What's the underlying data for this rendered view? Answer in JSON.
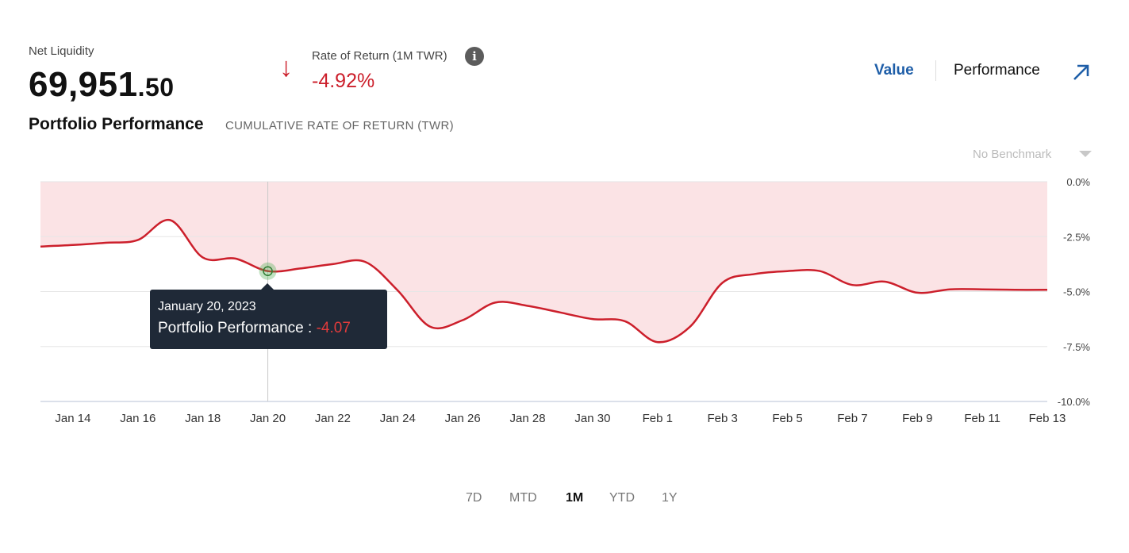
{
  "header": {
    "net_liquidity_label": "Net Liquidity",
    "net_liquidity_int": "69,951",
    "net_liquidity_dec": ".50",
    "ror_label": "Rate of Return (1M TWR)",
    "ror_value": "-4.92%",
    "ror_direction_icon": "arrow-down-icon",
    "info_icon": "info-icon"
  },
  "toggles": {
    "value_label": "Value",
    "performance_label": "Performance",
    "expand_icon": "arrow-up-right-icon"
  },
  "section": {
    "title": "Portfolio Performance",
    "subtitle": "CUMULATIVE RATE OF RETURN (TWR)"
  },
  "benchmark": {
    "selected": "No Benchmark"
  },
  "tooltip": {
    "date": "January 20, 2023",
    "label": "Portfolio Performance : ",
    "value": "-4.07"
  },
  "ranges": {
    "r7d": "7D",
    "mtd": "MTD",
    "r1m": "1M",
    "ytd": "YTD",
    "r1y": "1Y",
    "active": "1M"
  },
  "colors": {
    "line": "#cc1f2b",
    "fill": "#fbe3e5",
    "accent": "#1e5ea8",
    "negative": "#cc1f2b"
  },
  "chart_data": {
    "type": "area",
    "xlabel": "",
    "ylabel": "",
    "ylim": [
      -10.0,
      0.0
    ],
    "yticks": [
      "0.0%",
      "-2.5%",
      "-5.0%",
      "-7.5%",
      "-10.0%"
    ],
    "ytick_values": [
      0.0,
      -2.5,
      -5.0,
      -7.5,
      -10.0
    ],
    "xticks": [
      "Jan 14",
      "Jan 16",
      "Jan 18",
      "Jan 20",
      "Jan 22",
      "Jan 24",
      "Jan 26",
      "Jan 28",
      "Jan 30",
      "Feb 1",
      "Feb 3",
      "Feb 5",
      "Feb 7",
      "Feb 9",
      "Feb 11",
      "Feb 13"
    ],
    "grid": true,
    "series": [
      {
        "x": [
          "Jan 13",
          "Jan 14",
          "Jan 15",
          "Jan 16",
          "Jan 17",
          "Jan 18",
          "Jan 19",
          "Jan 20",
          "Jan 21",
          "Jan 22",
          "Jan 23",
          "Jan 24",
          "Jan 25",
          "Jan 26",
          "Jan 27",
          "Jan 28",
          "Jan 29",
          "Jan 30",
          "Jan 31",
          "Feb 1",
          "Feb 2",
          "Feb 3",
          "Feb 4",
          "Feb 5",
          "Feb 6",
          "Feb 7",
          "Feb 8",
          "Feb 9",
          "Feb 10",
          "Feb 11",
          "Feb 12",
          "Feb 13"
        ],
        "values": [
          -2.95,
          -2.88,
          -2.78,
          -2.65,
          -1.75,
          -3.45,
          -3.5,
          -4.07,
          -3.95,
          -3.75,
          -3.65,
          -4.95,
          -6.6,
          -6.3,
          -5.5,
          -5.65,
          -5.95,
          -6.25,
          -6.35,
          -7.3,
          -6.6,
          -4.6,
          -4.2,
          -4.07,
          -4.07,
          -4.7,
          -4.55,
          -5.05,
          -4.9,
          -4.9,
          -4.92,
          -4.92
        ]
      }
    ],
    "highlight": {
      "x": "Jan 20",
      "y": -4.07
    }
  }
}
